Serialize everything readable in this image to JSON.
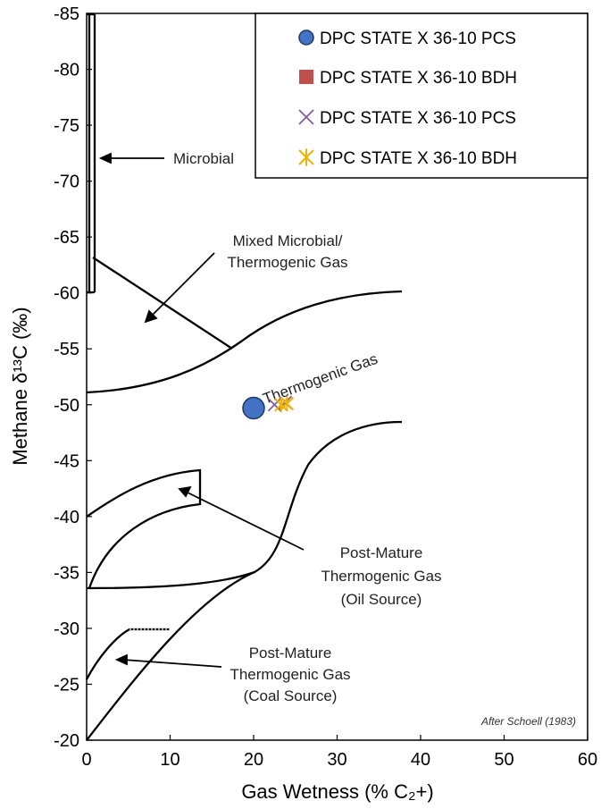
{
  "chart_data": {
    "type": "scatter",
    "xlabel": "Gas Wetness (% C₂+)",
    "ylabel": "Methane δ¹³C (‰)",
    "xlim": [
      0,
      60
    ],
    "ylim": [
      -20,
      -85
    ],
    "x_ticks": [
      "0",
      "10",
      "20",
      "30",
      "40",
      "50",
      "60"
    ],
    "y_ticks": [
      "-85",
      "-80",
      "-75",
      "-70",
      "-65",
      "-60",
      "-55",
      "-50",
      "-45",
      "-40",
      "-35",
      "-30",
      "-25",
      "-20"
    ],
    "grid": false,
    "legend_position": "top-right",
    "series": [
      {
        "name": "DPC STATE X 36-10 PCS",
        "marker": "circle",
        "color": "#4472C4",
        "points": [
          [
            20.0,
            -49.7
          ]
        ]
      },
      {
        "name": "DPC STATE X 36-10 BDH",
        "marker": "square",
        "color": "#C0504D",
        "points": []
      },
      {
        "name": "DPC STATE X 36-10 PCS",
        "marker": "x",
        "color": "#7E5FA0",
        "points": [
          [
            22.5,
            -50.0
          ],
          [
            23.8,
            -50.2
          ]
        ]
      },
      {
        "name": "DPC STATE X 36-10 BDH",
        "marker": "asterisk",
        "color": "#F2B200",
        "points": [
          [
            23.3,
            -50.0
          ],
          [
            24.0,
            -50.1
          ]
        ]
      }
    ],
    "annotations": [
      {
        "text": "Microbial"
      },
      {
        "text": "Mixed Microbial/"
      },
      {
        "text": "Thermogenic Gas"
      },
      {
        "text": "Thermogenic Gas"
      },
      {
        "text": "Post-Mature"
      },
      {
        "text": "Thermogenic Gas"
      },
      {
        "text": "(Oil Source)"
      },
      {
        "text": "Post-Mature"
      },
      {
        "text": "Thermogenic Gas"
      },
      {
        "text": "(Coal Source)"
      }
    ],
    "credit": "After Schoell (1983)"
  }
}
